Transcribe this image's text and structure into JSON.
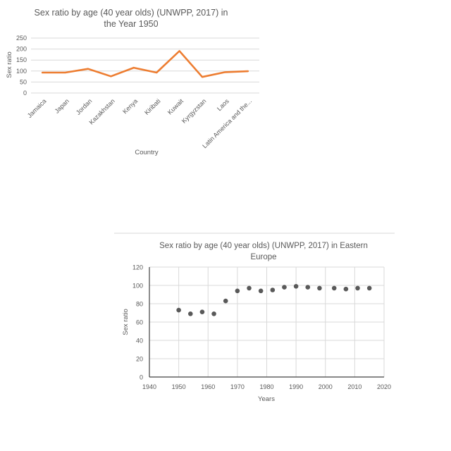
{
  "chart_data": [
    {
      "type": "line",
      "title": [
        "Sex ratio by age (40 year olds) (UNWPP, 2017) in",
        "the Year 1950"
      ],
      "xlabel": "Country",
      "ylabel": "Sex ratio",
      "categories": [
        "Jamaica",
        "Japan",
        "Jordan",
        "Kazakhstan",
        "Kenya",
        "Kiribati",
        "Kuwait",
        "Kyrgyzstan",
        "Laos",
        "Latin America and the..."
      ],
      "series": [
        {
          "values": [
            93,
            93,
            110,
            76,
            115,
            93,
            191,
            73,
            95,
            99
          ]
        }
      ],
      "ylim": [
        0,
        250
      ],
      "yticks": [
        0,
        50,
        100,
        150,
        200,
        250
      ],
      "grid": true,
      "color": "#ED7D31"
    },
    {
      "type": "scatter",
      "title": [
        "Sex ratio by age (40 year olds) (UNWPP, 2017) in Eastern",
        "Europe"
      ],
      "xlabel": "Years",
      "ylabel": "Sex ratio",
      "xlim": [
        1940,
        2020
      ],
      "xticks": [
        1940,
        1950,
        1960,
        1970,
        1980,
        1990,
        2000,
        2010,
        2020
      ],
      "ylim": [
        0,
        120
      ],
      "yticks": [
        0,
        20,
        40,
        60,
        80,
        100,
        120
      ],
      "grid": true,
      "color": "#595959",
      "points": [
        {
          "x": 1950,
          "y": 73
        },
        {
          "x": 1954,
          "y": 69
        },
        {
          "x": 1958,
          "y": 71
        },
        {
          "x": 1962,
          "y": 69
        },
        {
          "x": 1966,
          "y": 83
        },
        {
          "x": 1970,
          "y": 94
        },
        {
          "x": 1974,
          "y": 97
        },
        {
          "x": 1978,
          "y": 94
        },
        {
          "x": 1982,
          "y": 95
        },
        {
          "x": 1986,
          "y": 98
        },
        {
          "x": 1990,
          "y": 99
        },
        {
          "x": 1994,
          "y": 98
        },
        {
          "x": 1998,
          "y": 97
        },
        {
          "x": 2003,
          "y": 97
        },
        {
          "x": 2007,
          "y": 96
        },
        {
          "x": 2011,
          "y": 97
        },
        {
          "x": 2015,
          "y": 97
        }
      ]
    }
  ]
}
